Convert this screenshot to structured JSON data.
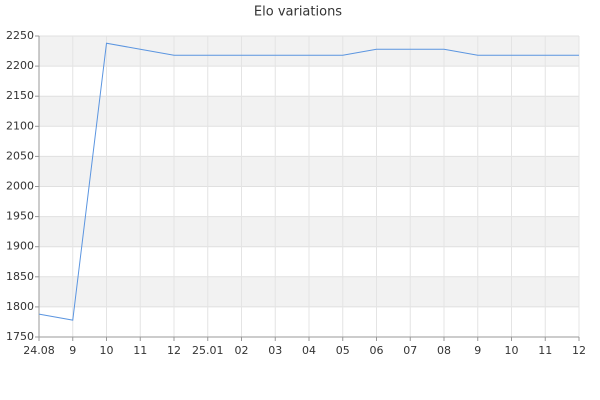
{
  "chart_data": {
    "type": "line",
    "title": "Elo variations",
    "categories": [
      "24.08",
      "9",
      "10",
      "11",
      "12",
      "25.01",
      "02",
      "03",
      "04",
      "05",
      "06",
      "07",
      "08",
      "9",
      "10",
      "11",
      "12"
    ],
    "series": [
      {
        "name": "Elo",
        "color": "#5b95e0",
        "values": [
          1788,
          1778,
          2238,
          2228,
          2218,
          2218,
          2218,
          2218,
          2218,
          2218,
          2228,
          2228,
          2228,
          2218,
          2218,
          2218,
          2218
        ]
      }
    ],
    "ylim": [
      1750,
      2250
    ],
    "yticks": [
      1750,
      1800,
      1850,
      1900,
      1950,
      2000,
      2050,
      2100,
      2150,
      2200,
      2250
    ],
    "grid": true
  }
}
